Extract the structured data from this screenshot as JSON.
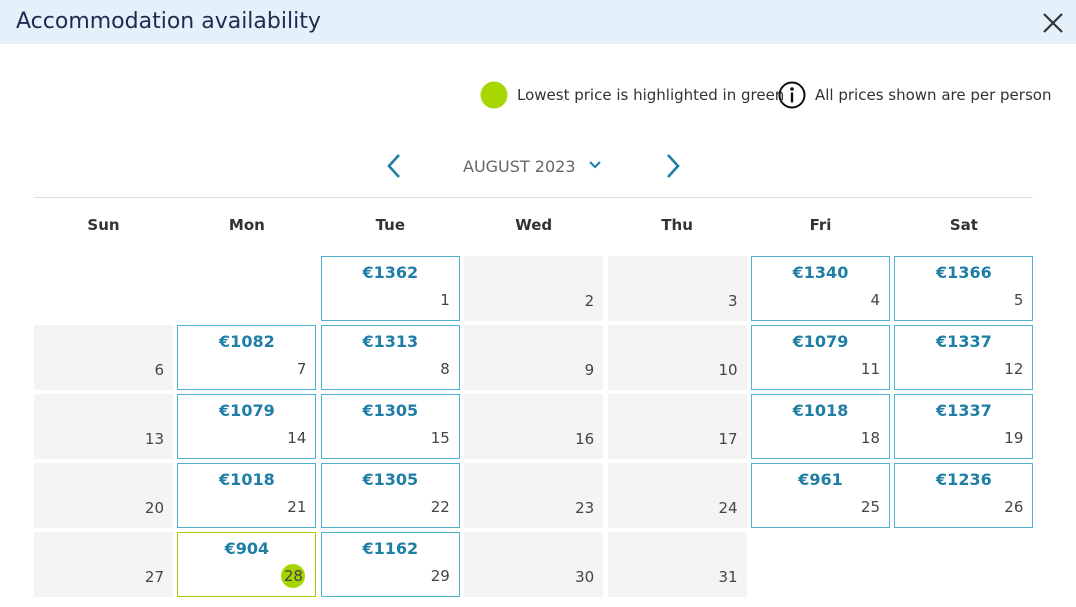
{
  "header": {
    "title": "Accommodation availability"
  },
  "legend": {
    "lowest": "Lowest price is highlighted in green",
    "per_person": "All prices shown are per person"
  },
  "calendar": {
    "month": "AUGUST 2023",
    "weekdays": [
      "Sun",
      "Mon",
      "Tue",
      "Wed",
      "Thu",
      "Fri",
      "Sat"
    ],
    "weeks": [
      [
        null,
        null,
        {
          "day": 1,
          "price": "€1362"
        },
        {
          "day": 2
        },
        {
          "day": 3
        },
        {
          "day": 4,
          "price": "€1340"
        },
        {
          "day": 5,
          "price": "€1366"
        }
      ],
      [
        {
          "day": 6
        },
        {
          "day": 7,
          "price": "€1082"
        },
        {
          "day": 8,
          "price": "€1313"
        },
        {
          "day": 9
        },
        {
          "day": 10
        },
        {
          "day": 11,
          "price": "€1079"
        },
        {
          "day": 12,
          "price": "€1337"
        }
      ],
      [
        {
          "day": 13
        },
        {
          "day": 14,
          "price": "€1079"
        },
        {
          "day": 15,
          "price": "€1305"
        },
        {
          "day": 16
        },
        {
          "day": 17
        },
        {
          "day": 18,
          "price": "€1018"
        },
        {
          "day": 19,
          "price": "€1337"
        }
      ],
      [
        {
          "day": 20
        },
        {
          "day": 21,
          "price": "€1018"
        },
        {
          "day": 22,
          "price": "€1305"
        },
        {
          "day": 23
        },
        {
          "day": 24
        },
        {
          "day": 25,
          "price": "€961"
        },
        {
          "day": 26,
          "price": "€1236"
        }
      ],
      [
        {
          "day": 27
        },
        {
          "day": 28,
          "price": "€904",
          "highlight": true
        },
        {
          "day": 29,
          "price": "€1162"
        },
        {
          "day": 30
        },
        {
          "day": 31
        },
        null,
        null
      ]
    ]
  }
}
